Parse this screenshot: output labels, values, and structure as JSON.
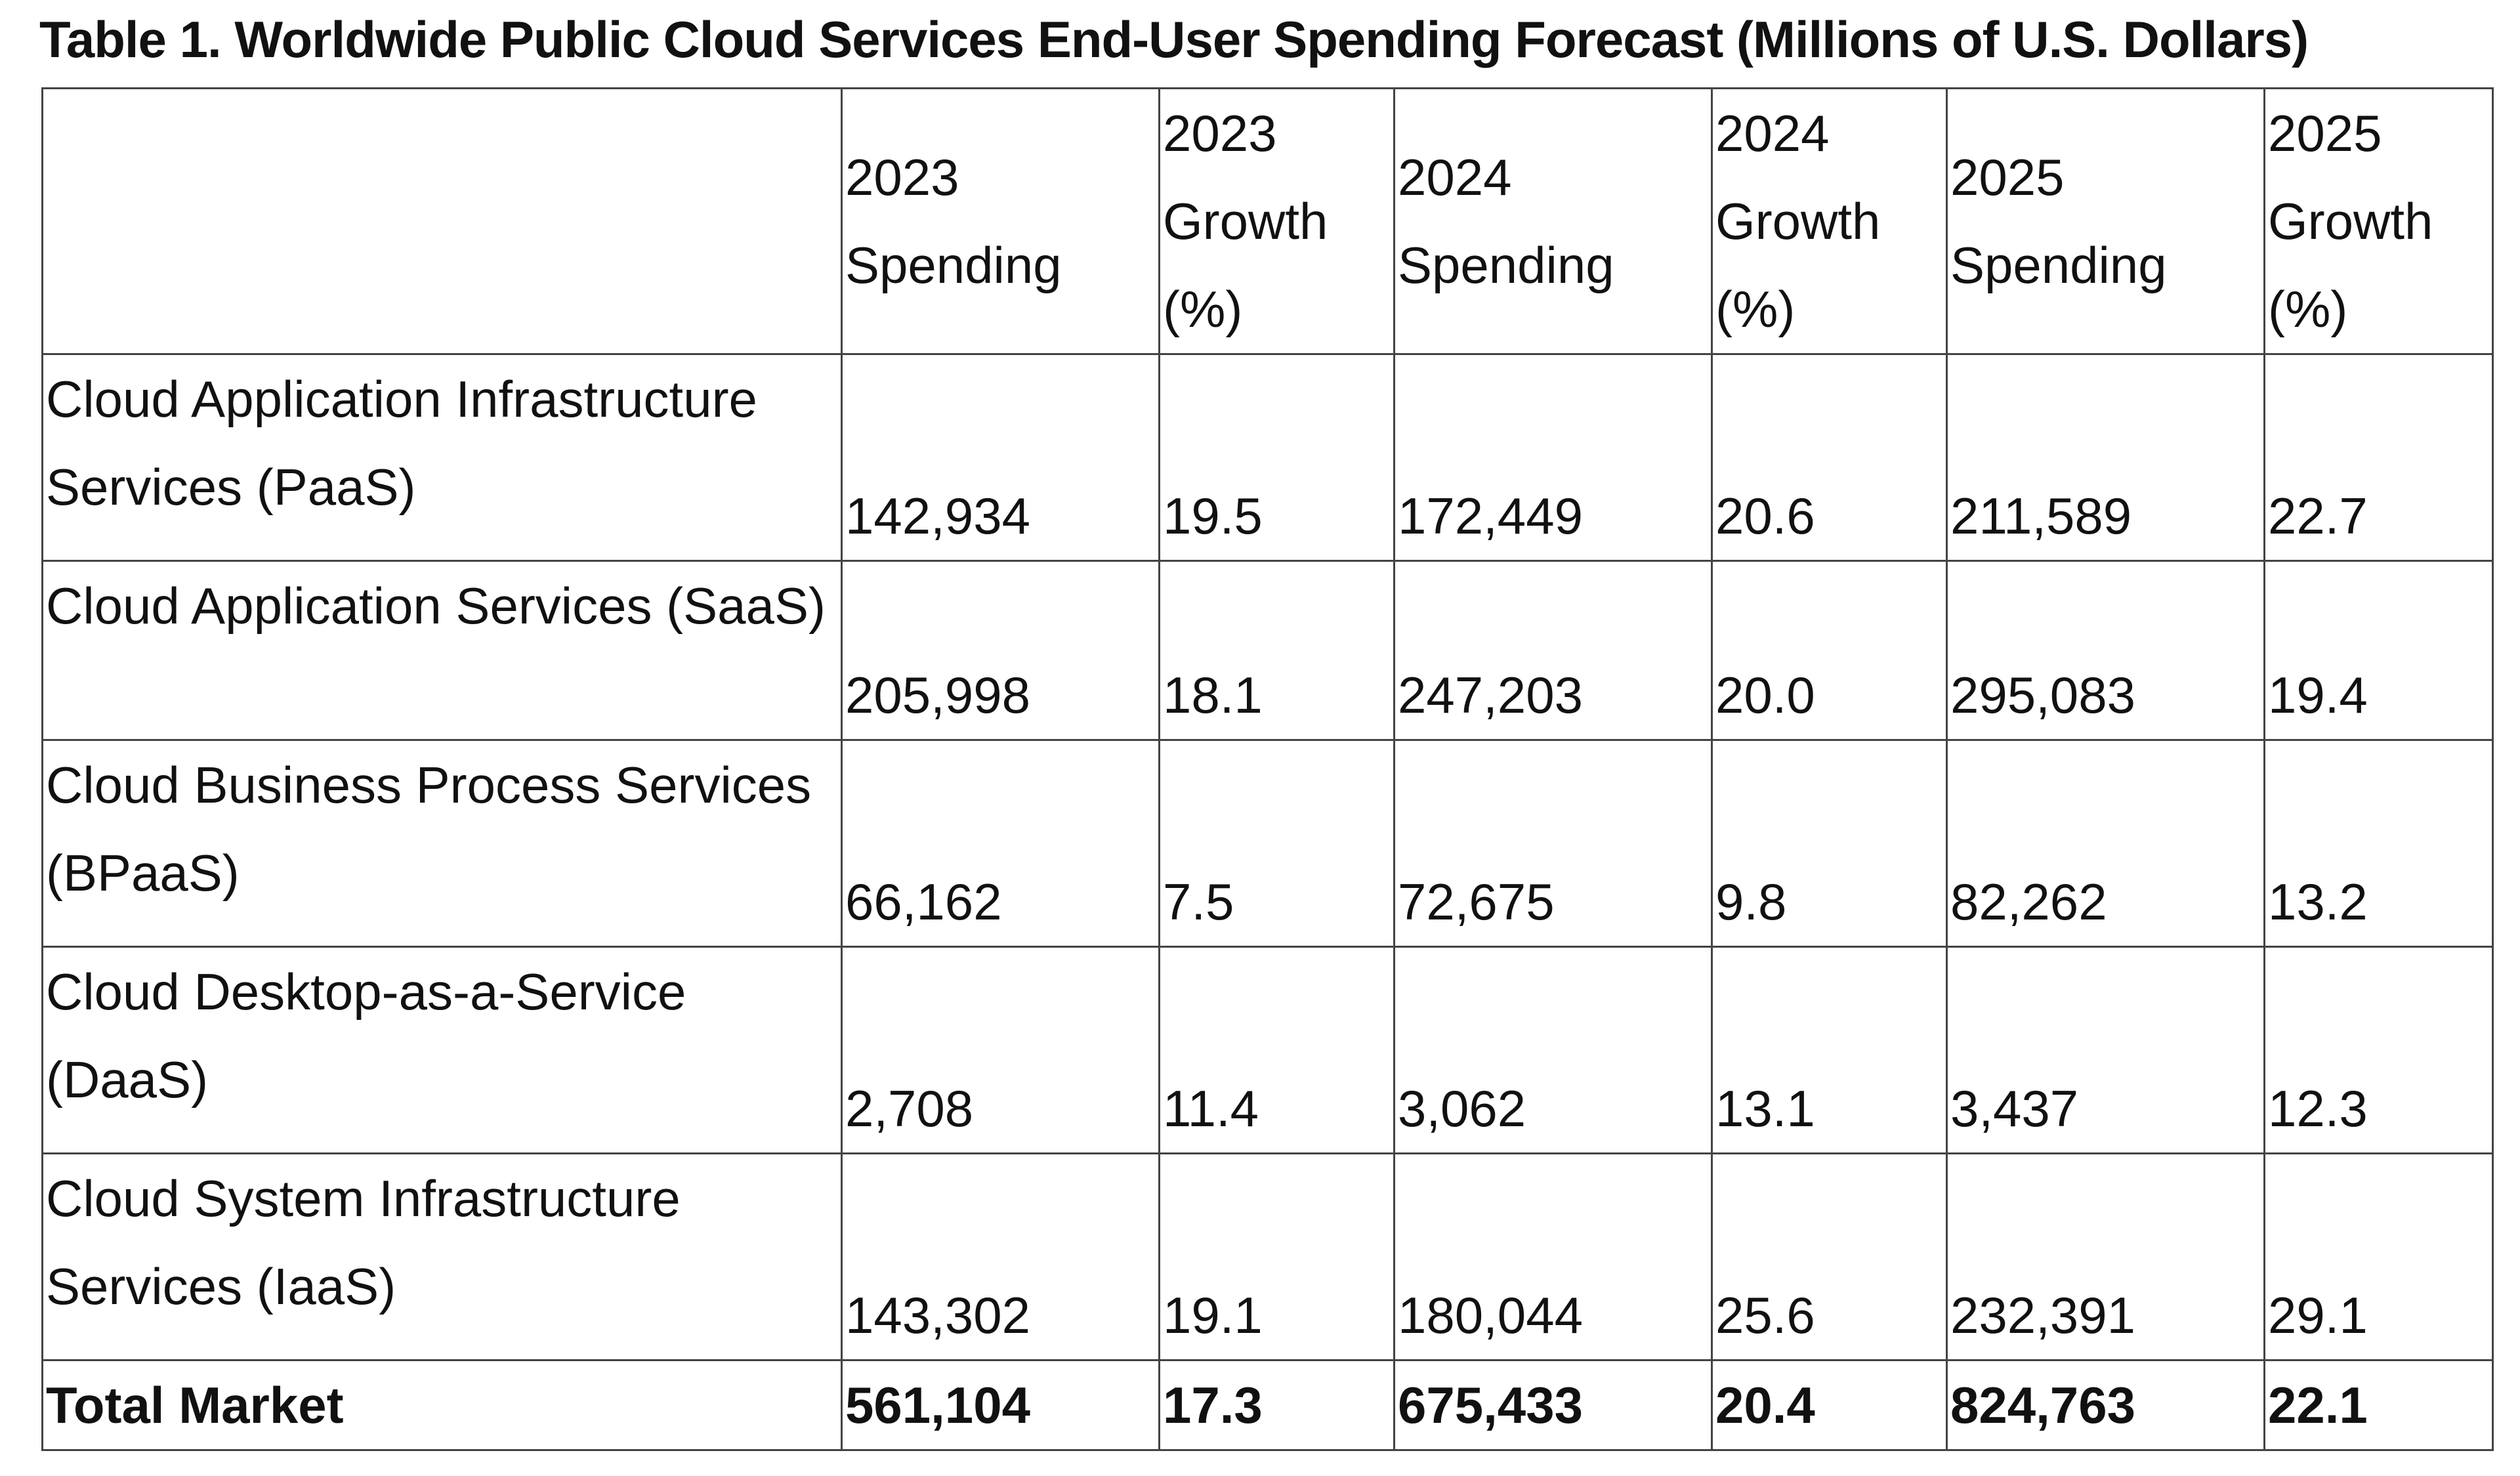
{
  "title": "Table 1. Worldwide Public Cloud Services End-User Spending Forecast (Millions of U.S. Dollars)",
  "chart_data": {
    "type": "table",
    "title": "Table 1. Worldwide Public Cloud Services End-User Spending Forecast (Millions of U.S. Dollars)",
    "columns": [
      "",
      "2023 Spending",
      "2023 Growth (%)",
      "2024 Spending",
      "2024 Growth (%)",
      "2025 Spending",
      "2025 Growth (%)"
    ],
    "rows": [
      {
        "label": "Cloud Application Infrastructure Services (PaaS)",
        "values": [
          "142,934",
          "19.5",
          "172,449",
          "20.6",
          "211,589",
          "22.7"
        ]
      },
      {
        "label": "Cloud Application Services (SaaS)",
        "values": [
          "205,998",
          "18.1",
          "247,203",
          "20.0",
          "295,083",
          "19.4"
        ]
      },
      {
        "label": "Cloud Business Process Services (BPaaS)",
        "values": [
          "66,162",
          "7.5",
          "72,675",
          "9.8",
          "82,262",
          "13.2"
        ]
      },
      {
        "label": "Cloud Desktop-as-a-Service (DaaS)",
        "values": [
          "2,708",
          "11.4",
          "3,062",
          "13.1",
          "3,437",
          "12.3"
        ]
      },
      {
        "label": "Cloud System Infrastructure Services (IaaS)",
        "values": [
          "143,302",
          "19.1",
          "180,044",
          "25.6",
          "232,391",
          "29.1"
        ]
      },
      {
        "label": "Total Market",
        "values": [
          "561,104",
          "17.3",
          "675,433",
          "20.4",
          "824,763",
          "22.1"
        ]
      }
    ]
  }
}
